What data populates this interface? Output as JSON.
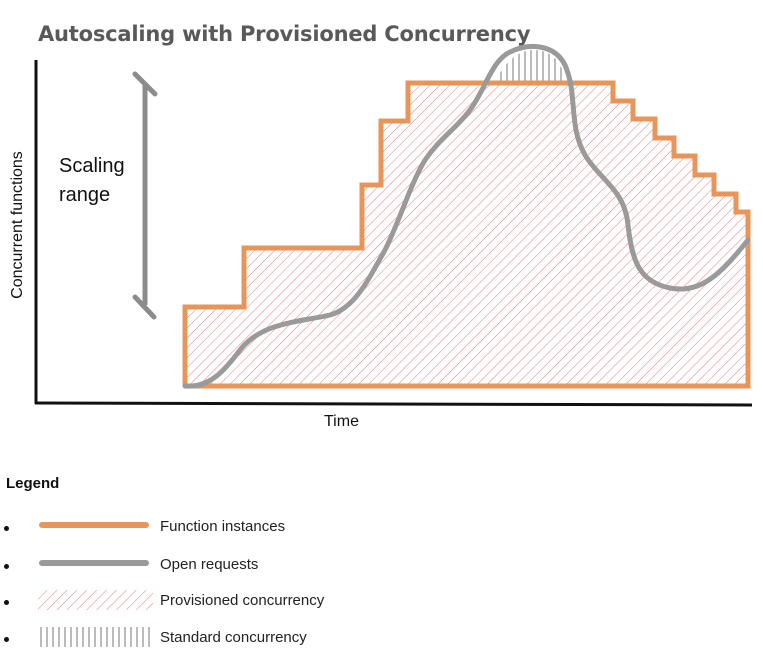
{
  "title": "Autoscaling with Provisioned Concurrency",
  "y_axis_label": "Concurrent functions",
  "x_axis_label": "Time",
  "scaling_range_label_line1": "Scaling",
  "scaling_range_label_line2": "range",
  "legend": {
    "title": "Legend",
    "items": [
      {
        "label": "Function instances",
        "symbol": "orange-line"
      },
      {
        "label": "Open requests",
        "symbol": "gray-line"
      },
      {
        "label": "Provisioned concurrency",
        "symbol": "red-diagonal-hatch"
      },
      {
        "label": "Standard concurrency",
        "symbol": "vertical-hatch"
      }
    ]
  },
  "colors": {
    "function_instances": "#e8955a",
    "open_requests": "#9a9a9a",
    "provisioned_hatch": "#e77b7b",
    "standard_hatch": "#777777",
    "axis": "#111111",
    "title": "#595959"
  }
}
